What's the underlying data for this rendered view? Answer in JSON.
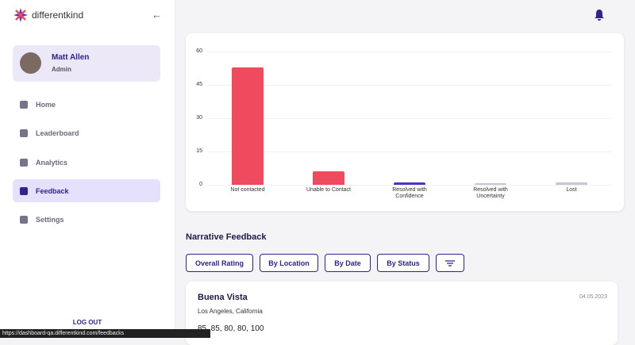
{
  "brand": "differentkind",
  "user": {
    "name": "Matt Allen",
    "role": "Admin"
  },
  "nav": [
    "Home",
    "Leaderboard",
    "Analytics",
    "Feedback",
    "Settings"
  ],
  "logout": "LOG OUT",
  "status_url": "https://dashboard-qa.differentkind.com/feedbacks",
  "chart_data": {
    "type": "bar",
    "categories": [
      "Not contacted",
      "Unable to Contact",
      "Resolved with Confidence",
      "Resolved with Uncertainty",
      "Lost"
    ],
    "values": [
      53,
      6,
      1,
      0.5,
      1
    ],
    "colors": [
      "#f04a5e",
      "#f04a5e",
      "#4a35c4",
      "#c9c5d6",
      "#c9c5d6"
    ],
    "ylim": [
      0,
      60
    ],
    "yticks": [
      0,
      15,
      30,
      45,
      60
    ],
    "grid": true
  },
  "narrative": {
    "title": "Narrative Feedback",
    "filters": [
      "Overall Rating",
      "By Location",
      "By Date",
      "By Status"
    ],
    "items": [
      {
        "name": "Buena Vista",
        "date": "04.05.2023",
        "location": "Los Angeles, California",
        "scores": "85, 85, 80, 80, 100"
      }
    ]
  }
}
